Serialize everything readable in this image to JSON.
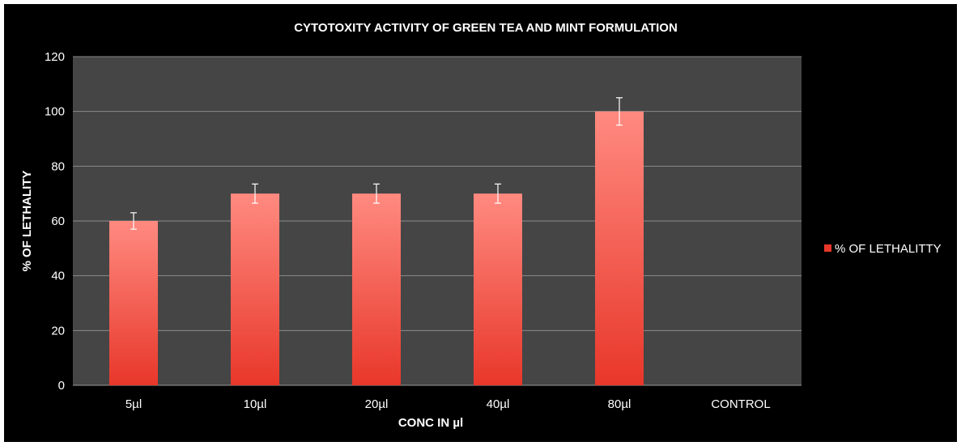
{
  "chart_data": {
    "type": "bar",
    "title": "CYTOTOXITY ACTIVITY OF GREEN TEA AND MINT FORMULATION",
    "xlabel": "CONC IN µl",
    "ylabel": "% OF LETHALITY",
    "categories": [
      "5µl",
      "10µl",
      "20µl",
      "40µl",
      "80µl",
      "CONTROL"
    ],
    "series": [
      {
        "name": "% OF LETHALITTY",
        "values": [
          60,
          70,
          70,
          70,
          100,
          0
        ],
        "error": [
          3,
          3.5,
          3.5,
          3.5,
          5,
          0
        ]
      }
    ],
    "ylim": [
      0,
      120
    ],
    "yticks": [
      0,
      20,
      40,
      60,
      80,
      100,
      120
    ],
    "grid": true,
    "legend_position": "right",
    "colors": {
      "bar_top": "#ff8a80",
      "bar_bottom": "#e8372a",
      "plot_background": "#454545",
      "background": "#000000",
      "grid": "#8a8a8a",
      "text": "#ffffff"
    }
  }
}
